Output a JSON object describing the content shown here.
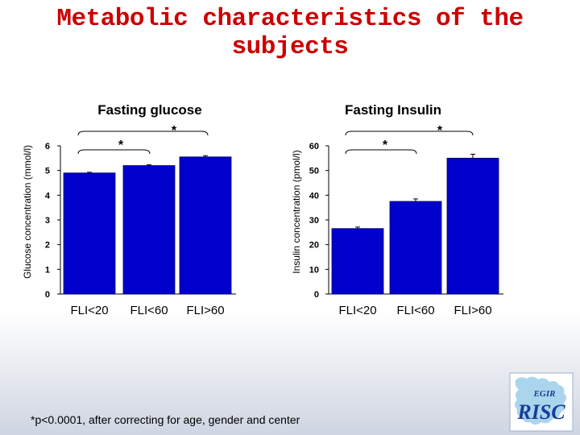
{
  "slide": {
    "title": "Metabolic characteristics of the subjects",
    "footnote": "*p<0.0001, after correcting for age, gender and center",
    "logo": {
      "top_text": "EGIR",
      "main_text": "RISC"
    }
  },
  "colors": {
    "title": "#cc0000",
    "bar": "#0000cc",
    "bar_edge": "#000066",
    "logo_text": "#1a3c9a"
  },
  "chart_data": [
    {
      "type": "bar",
      "title": "Fasting glucose",
      "ylabel": "Glucose concentration (mmol/l)",
      "categories": [
        "FLI<20",
        "FLI<60",
        "FLI>60"
      ],
      "values": [
        4.9,
        5.2,
        5.55
      ],
      "errors": [
        0.03,
        0.03,
        0.05
      ],
      "ylim": [
        0,
        6
      ],
      "yticks": [
        0,
        1,
        2,
        3,
        4,
        5,
        6
      ],
      "significance": [
        {
          "from": 0,
          "to": 1,
          "label": "*"
        },
        {
          "from": 0,
          "to": 2,
          "label": "*"
        }
      ]
    },
    {
      "type": "bar",
      "title": "Fasting Insulin",
      "ylabel": "Insulin concentration (pmol/l)",
      "categories": [
        "FLI<20",
        "FLI<60",
        "FLI>60"
      ],
      "values": [
        26.5,
        37.5,
        55
      ],
      "errors": [
        0.6,
        1.0,
        1.6
      ],
      "ylim": [
        0,
        60
      ],
      "yticks": [
        0,
        10,
        20,
        30,
        40,
        50,
        60
      ],
      "significance": [
        {
          "from": 0,
          "to": 1,
          "label": "*"
        },
        {
          "from": 0,
          "to": 2,
          "label": "*"
        }
      ]
    }
  ]
}
